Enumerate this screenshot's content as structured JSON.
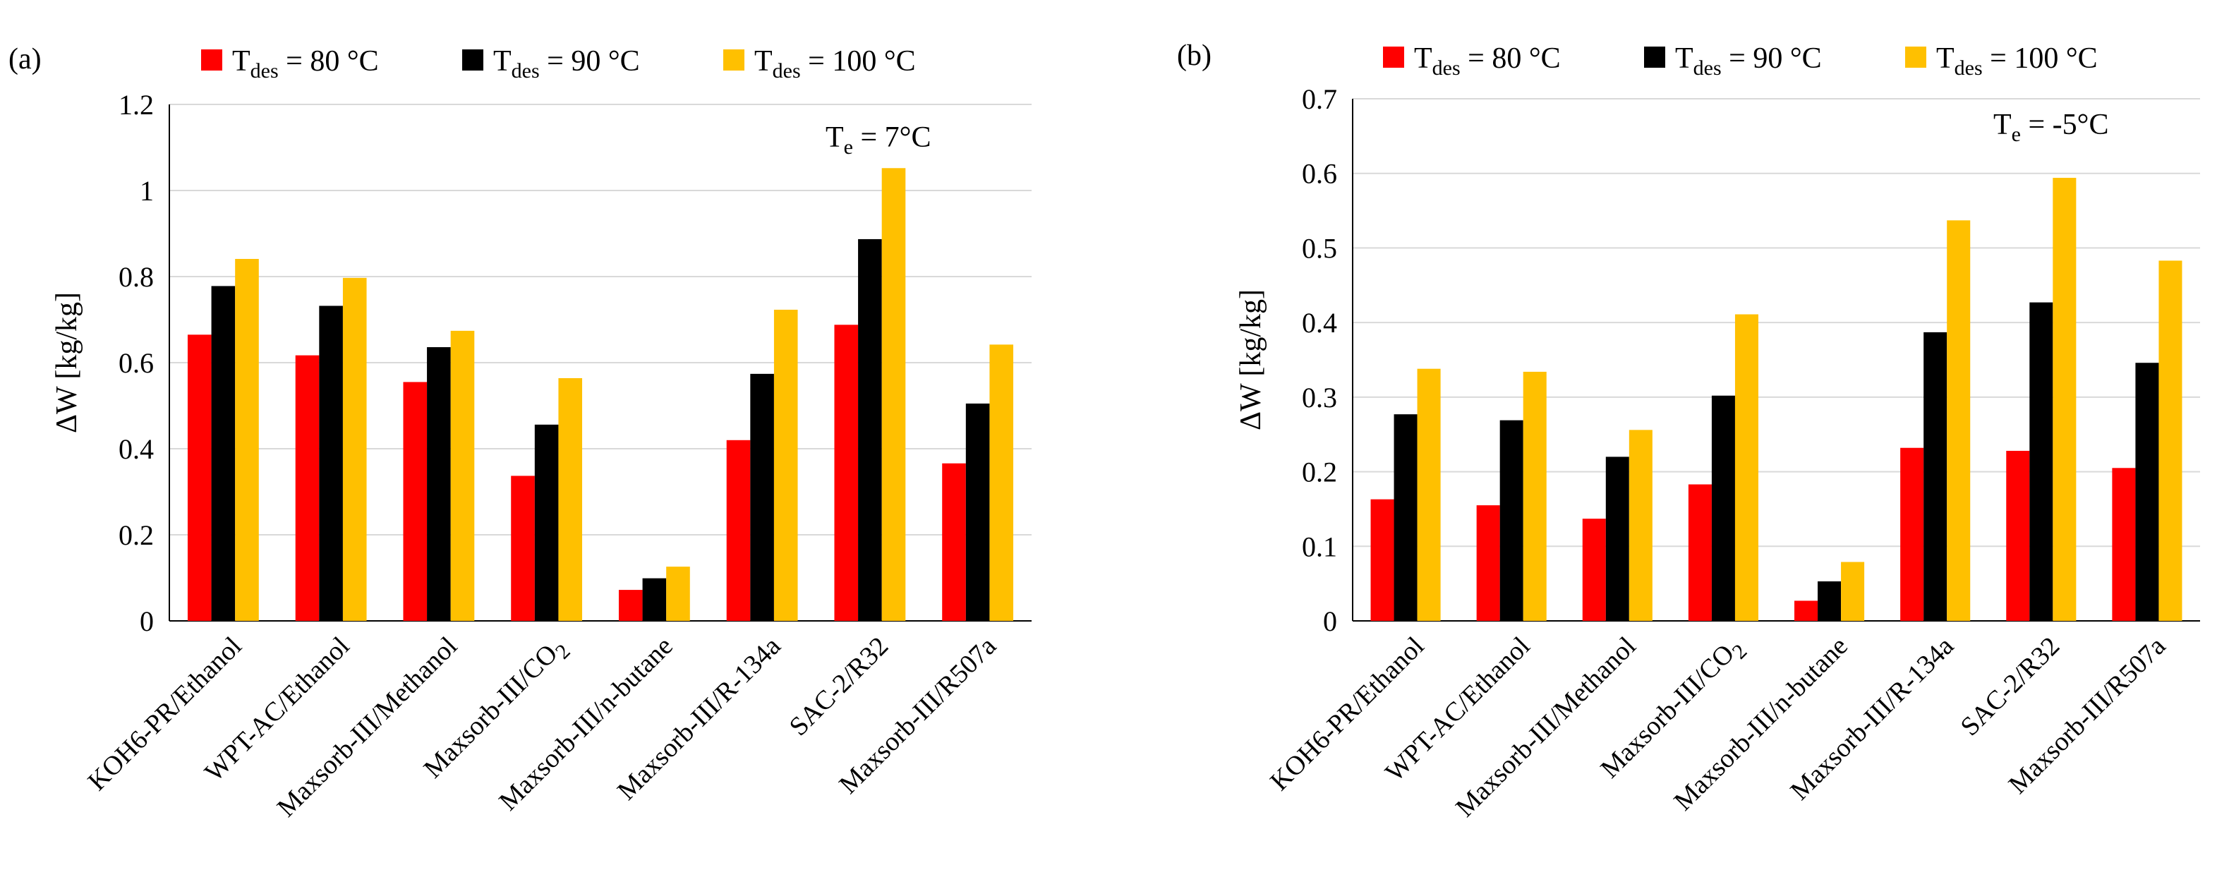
{
  "chart_data": [
    {
      "panel_label": "(a)",
      "type": "bar",
      "categories": [
        "KOH6-PR/Ethanol",
        "WPT-AC/Ethanol",
        "Maxsorb-III/Methanol",
        "Maxsorb-III/CO",
        "Maxsorb-III/n-butane",
        "Maxsorb-III/R-134a",
        "SAC-2/R32",
        "Maxsorb-III/R507a"
      ],
      "category_subscripts": [
        "",
        "",
        "",
        "2",
        "",
        "",
        "",
        ""
      ],
      "series": [
        {
          "name_main": "T",
          "name_sub": "des",
          "name_rest": " = 80 °C",
          "color": "#ff0000",
          "values": [
            0.665,
            0.617,
            0.555,
            0.337,
            0.072,
            0.42,
            0.688,
            0.366
          ]
        },
        {
          "name_main": "T",
          "name_sub": "des",
          "name_rest": " = 90 °C",
          "color": "#000000",
          "values": [
            0.778,
            0.732,
            0.636,
            0.456,
            0.099,
            0.574,
            0.887,
            0.505
          ]
        },
        {
          "name_main": "T",
          "name_sub": "des",
          "name_rest": " = 100 °C",
          "color": "#ffc000",
          "values": [
            0.841,
            0.797,
            0.674,
            0.564,
            0.126,
            0.723,
            1.052,
            0.642
          ]
        }
      ],
      "ylabel": "ΔW [kg/kg]",
      "ylim": [
        0,
        1.2
      ],
      "yticks": [
        "0",
        "0.2",
        "0.4",
        "0.6",
        "0.8",
        "1",
        "1.2"
      ],
      "annotation": {
        "main": "T",
        "sub": "e",
        "rest": " = 7°C"
      },
      "grid": "horizontal",
      "legend": "top"
    },
    {
      "panel_label": "(b)",
      "type": "bar",
      "categories": [
        "KOH6-PR/Ethanol",
        "WPT-AC/Ethanol",
        "Maxsorb-III/Methanol",
        "Maxsorb-III/CO",
        "Maxsorb-III/n-butane",
        "Maxsorb-III/R-134a",
        "SAC-2/R32",
        "Maxsorb-III/R507a"
      ],
      "category_subscripts": [
        "",
        "",
        "",
        "2",
        "",
        "",
        "",
        ""
      ],
      "series": [
        {
          "name_main": "T",
          "name_sub": "des",
          "name_rest": " = 80 °C",
          "color": "#ff0000",
          "values": [
            0.163,
            0.155,
            0.137,
            0.183,
            0.027,
            0.232,
            0.228,
            0.205
          ]
        },
        {
          "name_main": "T",
          "name_sub": "des",
          "name_rest": " = 90 °C",
          "color": "#000000",
          "values": [
            0.277,
            0.269,
            0.22,
            0.302,
            0.053,
            0.387,
            0.427,
            0.346
          ]
        },
        {
          "name_main": "T",
          "name_sub": "des",
          "name_rest": " = 100 °C",
          "color": "#ffc000",
          "values": [
            0.338,
            0.334,
            0.256,
            0.411,
            0.079,
            0.537,
            0.594,
            0.483
          ]
        }
      ],
      "ylabel": "ΔW [kg/kg]",
      "ylim": [
        0,
        0.7
      ],
      "yticks": [
        "0",
        "0.1",
        "0.2",
        "0.3",
        "0.4",
        "0.5",
        "0.6",
        "0.7"
      ],
      "annotation": {
        "main": "T",
        "sub": "e",
        "rest": " = -5°C"
      },
      "grid": "horizontal",
      "legend": "top"
    }
  ]
}
